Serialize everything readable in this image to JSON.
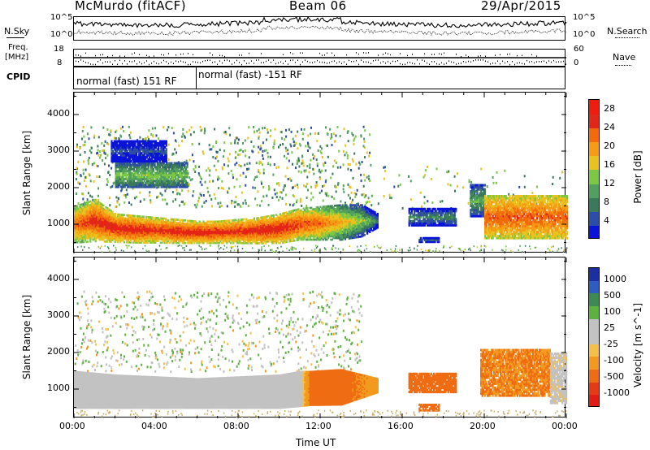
{
  "header": {
    "station": "McMurdo (fitACF)",
    "beam": "Beam 06",
    "date": "29/Apr/2015"
  },
  "aux": {
    "nsky_label": "N.Sky",
    "nsearch_label": "N.Search",
    "freq_label_1": "Freq.",
    "freq_label_2": "[MHz]",
    "nave_label": "Nave",
    "cpid_label": "CPID",
    "noise_ticks": [
      "10^5",
      "10^0"
    ],
    "freq_ticks": [
      "18",
      "8"
    ],
    "nave_ticks": [
      "60",
      "0"
    ],
    "cpid_segments": [
      {
        "text": "normal (fast) 151 RF",
        "start_hour": 0,
        "end_hour": 6
      },
      {
        "text": "normal (fast) -151 RF",
        "start_hour": 6,
        "end_hour": 24
      }
    ]
  },
  "colors": {
    "power": [
      "#0a14d8",
      "#2e4da6",
      "#3a7a5a",
      "#52a060",
      "#7cc844",
      "#e8c21e",
      "#f59b14",
      "#f26a0c",
      "#e0281a",
      "#f01c10"
    ],
    "velocity": [
      "#1c2fa0",
      "#2e5cc0",
      "#3d8a52",
      "#5db23f",
      "#c2c2c2",
      "#c2c2c2",
      "#f5c04a",
      "#f29a1e",
      "#ef6d12",
      "#e43a16",
      "#e01c14"
    ]
  },
  "chart_data": [
    {
      "type": "heatmap",
      "panel": "power",
      "ylabel": "Slant Range [km]",
      "x_ticks": [
        "00:00",
        "04:00",
        "08:00",
        "12:00",
        "16:00",
        "20:00",
        "00:00"
      ],
      "xlim_hours": [
        0,
        24
      ],
      "y_ticks": [
        "1000",
        "2000",
        "3000",
        "4000"
      ],
      "ylim": [
        200,
        4600
      ],
      "colorbar_title": "Power [dB]",
      "colorbar_ticks": [
        "4",
        "8",
        "12",
        "16",
        "20",
        "24",
        "28"
      ],
      "colorbar_range": [
        0,
        30
      ],
      "main_band": [
        {
          "hour": 0.0,
          "low": 480,
          "high": 1500,
          "power": 24
        },
        {
          "hour": 1.0,
          "low": 520,
          "high": 1700,
          "power": 27
        },
        {
          "hour": 2.0,
          "low": 500,
          "high": 1300,
          "power": 28
        },
        {
          "hour": 3.0,
          "low": 480,
          "high": 1250,
          "power": 28
        },
        {
          "hour": 4.0,
          "low": 480,
          "high": 1200,
          "power": 27
        },
        {
          "hour": 5.0,
          "low": 470,
          "high": 1150,
          "power": 28
        },
        {
          "hour": 6.0,
          "low": 470,
          "high": 1100,
          "power": 28
        },
        {
          "hour": 7.0,
          "low": 470,
          "high": 1100,
          "power": 28
        },
        {
          "hour": 8.0,
          "low": 470,
          "high": 1150,
          "power": 27
        },
        {
          "hour": 9.0,
          "low": 460,
          "high": 1200,
          "power": 28
        },
        {
          "hour": 10.0,
          "low": 470,
          "high": 1300,
          "power": 28
        },
        {
          "hour": 11.0,
          "low": 560,
          "high": 1450,
          "power": 26
        },
        {
          "hour": 12.0,
          "low": 560,
          "high": 1500,
          "power": 24
        },
        {
          "hour": 13.0,
          "low": 560,
          "high": 1550,
          "power": 20
        },
        {
          "hour": 14.0,
          "low": 650,
          "high": 1550,
          "power": 16
        },
        {
          "hour": 14.8,
          "low": 900,
          "high": 1300,
          "power": 10
        }
      ],
      "patches": [
        {
          "h0": 16.3,
          "h1": 18.6,
          "low": 950,
          "high": 1450,
          "power": 10
        },
        {
          "h0": 16.8,
          "h1": 17.8,
          "low": 500,
          "high": 650,
          "power": 8
        },
        {
          "h0": 19.3,
          "h1": 20.0,
          "low": 1200,
          "high": 2100,
          "power": 12
        },
        {
          "h0": 20.0,
          "h1": 24.0,
          "low": 600,
          "high": 1800,
          "power": 24
        },
        {
          "h0": 2.0,
          "h1": 5.5,
          "low": 2000,
          "high": 2700,
          "power": 14
        },
        {
          "h0": 1.8,
          "h1": 4.5,
          "low": 2700,
          "high": 3300,
          "power": 6
        }
      ],
      "sparse_regions": [
        {
          "h0": 0.0,
          "h1": 14.5,
          "low": 1500,
          "high": 3700,
          "density": 0.45
        },
        {
          "h0": 14.5,
          "h1": 24.0,
          "low": 1400,
          "high": 2600,
          "density": 0.12
        }
      ]
    },
    {
      "type": "heatmap",
      "panel": "velocity",
      "ylabel": "Slant Range [km]",
      "xlabel": "Time UT",
      "x_ticks": [
        "00:00",
        "04:00",
        "08:00",
        "12:00",
        "16:00",
        "20:00",
        "00:00"
      ],
      "xlim_hours": [
        0,
        24
      ],
      "y_ticks": [
        "1000",
        "2000",
        "3000",
        "4000"
      ],
      "ylim": [
        200,
        4600
      ],
      "colorbar_title": "Velocity [m s^-1]",
      "colorbar_ticks": [
        "1000",
        "500",
        "100",
        "25",
        "-25",
        "-100",
        "-500",
        "-1000"
      ],
      "main_band": [
        {
          "hour": 0.0,
          "low": 470,
          "high": 1500,
          "velocity": 60
        },
        {
          "hour": 2.0,
          "low": 470,
          "high": 1400,
          "velocity": 60
        },
        {
          "hour": 4.0,
          "low": 470,
          "high": 1350,
          "velocity": 60
        },
        {
          "hour": 6.0,
          "low": 470,
          "high": 1300,
          "velocity": 60
        },
        {
          "hour": 8.0,
          "low": 470,
          "high": 1350,
          "velocity": 60
        },
        {
          "hour": 10.0,
          "low": 470,
          "high": 1400,
          "velocity": 60
        },
        {
          "hour": 11.0,
          "low": 520,
          "high": 1500,
          "velocity": 50
        },
        {
          "hour": 11.5,
          "low": 550,
          "high": 1500,
          "velocity": -300
        },
        {
          "hour": 13.0,
          "low": 560,
          "high": 1550,
          "velocity": -300
        },
        {
          "hour": 14.8,
          "low": 900,
          "high": 1300,
          "velocity": -200
        }
      ],
      "patches": [
        {
          "h0": 16.3,
          "h1": 18.6,
          "low": 900,
          "high": 1450,
          "velocity": -300
        },
        {
          "h0": 16.8,
          "h1": 17.8,
          "low": 400,
          "high": 600,
          "velocity": -300
        },
        {
          "h0": 19.8,
          "h1": 23.2,
          "low": 800,
          "high": 2100,
          "velocity": -250
        },
        {
          "h0": 23.2,
          "h1": 24.0,
          "low": 600,
          "high": 2000,
          "velocity": 0
        }
      ],
      "sparse_regions": [
        {
          "h0": 0.0,
          "h1": 14.0,
          "low": 1500,
          "high": 3700,
          "density": 0.4
        }
      ]
    }
  ]
}
